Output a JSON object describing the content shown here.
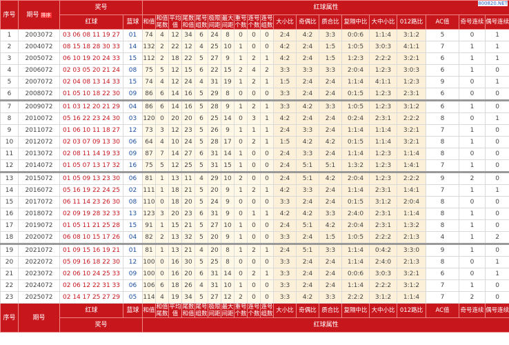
{
  "header": {
    "index": "序号",
    "issue": "期号",
    "sort": "排序",
    "prize": "奖号",
    "red": "红球",
    "blue": "蓝球",
    "attr": "红球属性",
    "columns": [
      "和值",
      "和值尾数",
      "平均值",
      "尾数和值",
      "尾号组数",
      "极限间距",
      "最大间距",
      "重号个数",
      "连号个数",
      "连号组数",
      "大小比",
      "奇偶比",
      "质合比",
      "复隔中比",
      "大中小比",
      "012路比",
      "AC值",
      "奇号连续",
      "偶号连续"
    ]
  },
  "watermark": "800820.NET",
  "rows": [
    [
      1,
      "2003072",
      "03 06 08 11 19 27",
      "01",
      74,
      4,
      12,
      34,
      6,
      24,
      8,
      0,
      0,
      0,
      "2:4",
      "4:2",
      "3:3",
      "0:0:6",
      "1:1:4",
      "3:1:2",
      5,
      0,
      1
    ],
    [
      2,
      "2004072",
      "08 15 18 28 30 33",
      "14",
      132,
      2,
      22,
      12,
      4,
      25,
      10,
      1,
      0,
      0,
      "4:2",
      "2:4",
      "1:5",
      "1:0:5",
      "3:0:3",
      "4:1:1",
      7,
      1,
      1
    ],
    [
      3,
      "2005072",
      "06 10 19 20 24 33",
      "15",
      112,
      2,
      18,
      22,
      5,
      27,
      9,
      1,
      2,
      1,
      "4:2",
      "2:4",
      "1:5",
      "1:2:3",
      "2:2:2",
      "3:2:1",
      6,
      1,
      1
    ],
    [
      4,
      "2006072",
      "02 03 05 20 21 24",
      "08",
      75,
      5,
      12,
      15,
      6,
      22,
      15,
      2,
      4,
      2,
      "3:3",
      "3:3",
      "3:3",
      "2:0:4",
      "1:2:3",
      "3:0:3",
      6,
      1,
      0
    ],
    [
      5,
      "2007072",
      "02 04 08 13 14 33",
      "15",
      74,
      4,
      12,
      24,
      4,
      31,
      19,
      1,
      2,
      1,
      "1:5",
      "2:4",
      "2:4",
      "1:1:4",
      "4:1:1",
      "1:2:3",
      9,
      0,
      1
    ],
    [
      6,
      "2008072",
      "01 05 10 18 22 30",
      "09",
      86,
      6,
      14,
      16,
      5,
      29,
      8,
      0,
      0,
      0,
      "3:3",
      "2:4",
      "2:4",
      "0:1:5",
      "1:2:3",
      "2:3:1",
      6,
      0,
      0
    ],
    [
      7,
      "2009072",
      "01 03 12 20 21 29",
      "04",
      86,
      6,
      14,
      16,
      5,
      28,
      9,
      1,
      2,
      1,
      "3:3",
      "4:2",
      "3:3",
      "1:0:5",
      "1:2:3",
      "3:1:2",
      6,
      1,
      0
    ],
    [
      8,
      "2010072",
      "05 16 22 23 24 30",
      "03",
      120,
      0,
      20,
      20,
      6,
      25,
      14,
      0,
      3,
      1,
      "4:2",
      "2:4",
      "2:4",
      "0:2:4",
      "2:3:1",
      "2:2:2",
      8,
      0,
      1
    ],
    [
      9,
      "2011072",
      "01 06 10 11 18 27",
      "12",
      73,
      3,
      12,
      23,
      5,
      26,
      9,
      1,
      1,
      1,
      "2:4",
      "3:3",
      "2:4",
      "1:1:4",
      "1:1:4",
      "3:2:1",
      7,
      1,
      0
    ],
    [
      10,
      "2012072",
      "02 03 07 09 13 30",
      "06",
      64,
      4,
      10,
      24,
      5,
      28,
      17,
      0,
      2,
      1,
      "1:5",
      "4:2",
      "4:2",
      "0:1:5",
      "1:1:4",
      "3:2:1",
      8,
      1,
      0
    ],
    [
      11,
      "2013072",
      "02 08 11 14 19 33",
      "09",
      87,
      7,
      14,
      27,
      6,
      31,
      14,
      1,
      0,
      0,
      "2:4",
      "3:3",
      "2:4",
      "1:1:4",
      "1:2:3",
      "1:1:4",
      8,
      0,
      0
    ],
    [
      12,
      "2014072",
      "01 05 07 13 17 32",
      "16",
      75,
      5,
      12,
      25,
      5,
      31,
      15,
      1,
      0,
      0,
      "2:4",
      "5:1",
      "5:1",
      "1:3:2",
      "1:2:3",
      "1:4:1",
      7,
      1,
      0
    ],
    [
      13,
      "2015072",
      "01 05 09 13 23 30",
      "06",
      81,
      1,
      13,
      11,
      4,
      29,
      10,
      2,
      0,
      0,
      "2:4",
      "5:1",
      "4:2",
      "2:0:4",
      "1:2:3",
      "2:2:2",
      9,
      2,
      0
    ],
    [
      14,
      "2016072",
      "05 16 19 22 24 25",
      "02",
      111,
      1,
      18,
      21,
      5,
      20,
      9,
      1,
      2,
      1,
      "4:2",
      "3:3",
      "2:4",
      "1:1:4",
      "2:3:1",
      "1:4:1",
      7,
      1,
      1
    ],
    [
      15,
      "2017072",
      "06 11 14 23 26 30",
      "08",
      110,
      0,
      18,
      20,
      5,
      24,
      9,
      0,
      0,
      0,
      "3:3",
      "2:4",
      "2:4",
      "0:1:5",
      "3:1:2",
      "2:0:4",
      8,
      0,
      0
    ],
    [
      16,
      "2018072",
      "02 09 19 28 32 33",
      "13",
      123,
      3,
      20,
      23,
      6,
      31,
      9,
      0,
      1,
      1,
      "4:2",
      "4:2",
      "3:3",
      "2:4:0",
      "2:3:1",
      "1:1:4",
      8,
      1,
      0
    ],
    [
      17,
      "2019072",
      "01 05 11 21 25 28",
      "15",
      91,
      1,
      15,
      21,
      5,
      27,
      10,
      1,
      0,
      0,
      "2:4",
      "5:1",
      "4:2",
      "2:0:4",
      "2:3:1",
      "1:3:2",
      8,
      1,
      0
    ],
    [
      18,
      "2020072",
      "06 08 10 15 17 26",
      "04",
      82,
      2,
      13,
      32,
      5,
      20,
      9,
      1,
      0,
      0,
      "3:3",
      "2:4",
      "1:5",
      "1:0:5",
      "2:2:2",
      "2:1:3",
      4,
      1,
      2
    ],
    [
      19,
      "2021072",
      "01 09 15 16 19 21",
      "01",
      81,
      1,
      13,
      21,
      4,
      20,
      8,
      1,
      2,
      1,
      "2:4",
      "5:1",
      "3:3",
      "1:1:4",
      "0:4:2",
      "3:3:0",
      9,
      1,
      0
    ],
    [
      20,
      "2022072",
      "05 09 16 18 22 30",
      "12",
      100,
      0,
      16,
      30,
      5,
      25,
      8,
      0,
      0,
      0,
      "3:3",
      "2:4",
      "2:4",
      "1:1:4",
      "2:4:0",
      "2:1:3",
      8,
      0,
      1
    ],
    [
      21,
      "2023072",
      "02 06 10 24 25 33",
      "09",
      100,
      0,
      16,
      20,
      6,
      31,
      14,
      0,
      2,
      1,
      "3:3",
      "2:4",
      "2:4",
      "0:0:6",
      "3:0:3",
      "3:2:1",
      6,
      0,
      1
    ],
    [
      22,
      "2024072",
      "02 06 12 22 31 33",
      "06",
      106,
      6,
      18,
      26,
      4,
      31,
      10,
      1,
      0,
      0,
      "3:3",
      "2:4",
      "2:4",
      "1:1:4",
      "2:2:2",
      "3:1:2",
      7,
      1,
      0
    ],
    [
      23,
      "2025072",
      "02 14 17 25 27 29",
      "05",
      114,
      4,
      19,
      34,
      5,
      27,
      12,
      2,
      0,
      0,
      "3:3",
      "4:2",
      "3:3",
      "2:2:2",
      "3:1:2",
      "1:1:4",
      7,
      2,
      0
    ]
  ]
}
